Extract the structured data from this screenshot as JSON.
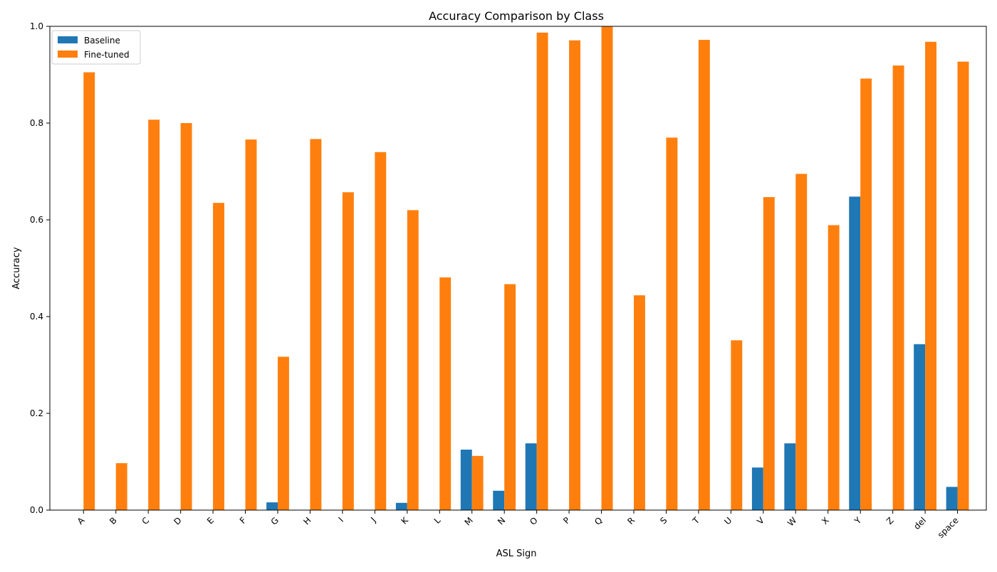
{
  "chart_data": {
    "type": "bar",
    "title": "Accuracy Comparison by Class",
    "xlabel": "ASL Sign",
    "ylabel": "Accuracy",
    "ylim": [
      0,
      1.0
    ],
    "yticks": [
      0.0,
      0.2,
      0.4,
      0.6,
      0.8,
      1.0
    ],
    "ytick_labels": [
      "0.0",
      "0.2",
      "0.4",
      "0.6",
      "0.8",
      "1.0"
    ],
    "grid": false,
    "legend_position": "top-left",
    "categories": [
      "A",
      "B",
      "C",
      "D",
      "E",
      "F",
      "G",
      "H",
      "I",
      "J",
      "K",
      "L",
      "M",
      "N",
      "O",
      "P",
      "Q",
      "R",
      "S",
      "T",
      "U",
      "V",
      "W",
      "X",
      "Y",
      "Z",
      "del",
      "space"
    ],
    "series": [
      {
        "name": "Baseline",
        "color": "#1f77b4",
        "values": [
          0,
          0,
          0,
          0,
          0,
          0,
          0.016,
          0,
          0,
          0,
          0.015,
          0,
          0.125,
          0.04,
          0.138,
          0,
          0,
          0,
          0,
          0,
          0,
          0.088,
          0.138,
          0,
          0.648,
          0,
          0.343,
          0.048
        ]
      },
      {
        "name": "Fine-tuned",
        "color": "#ff7f0e",
        "values": [
          0.905,
          0.097,
          0.807,
          0.8,
          0.635,
          0.766,
          0.317,
          0.767,
          0.657,
          0.74,
          0.62,
          0.481,
          0.112,
          0.467,
          0.987,
          0.971,
          1.0,
          0.444,
          0.77,
          0.972,
          0.351,
          0.647,
          0.695,
          0.589,
          0.892,
          0.919,
          0.968,
          0.927
        ]
      }
    ]
  }
}
